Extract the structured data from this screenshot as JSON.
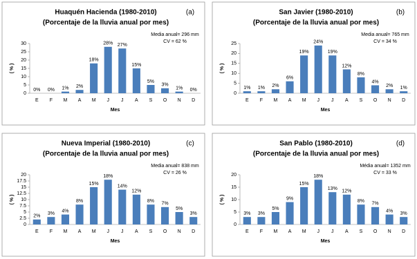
{
  "chart_data": [
    {
      "type": "bar",
      "title": "Huaquén Hacienda (1980-2010)",
      "subtitle": "(Porcentaje de la lluvia anual por mes)",
      "panel_label": "(a)",
      "annotations": [
        "Media anual= 296 mm",
        "CV = 62 %"
      ],
      "x_label": "Mes",
      "y_label": "( % )",
      "categories": [
        "E",
        "F",
        "M",
        "A",
        "M",
        "J",
        "J",
        "A",
        "S",
        "O",
        "N",
        "D"
      ],
      "values": [
        0,
        0,
        1,
        2,
        18,
        28,
        27,
        15,
        5,
        3,
        1,
        0
      ],
      "value_labels": [
        "0%",
        "0%",
        "1%",
        "2%",
        "18%",
        "28%",
        "27%",
        "15%",
        "5%",
        "3%",
        "1%",
        "0%"
      ],
      "color": "#4a7ebb",
      "ylim": [
        0,
        30
      ],
      "yticks": [
        0,
        5,
        10,
        15,
        20,
        25,
        30
      ]
    },
    {
      "type": "bar",
      "title": "San Javier (1980-2010)",
      "subtitle": "(Porcentaje de la lluvia anual por mes)",
      "panel_label": "(b)",
      "annotations": [
        "Media anual= 765 mm",
        "CV = 34 %"
      ],
      "x_label": "Mes",
      "y_label": "( % )",
      "categories": [
        "E",
        "F",
        "M",
        "A",
        "M",
        "J",
        "J",
        "A",
        "S",
        "O",
        "N",
        "D"
      ],
      "values": [
        1,
        1,
        2,
        6,
        19,
        24,
        19,
        12,
        8,
        4,
        2,
        1
      ],
      "value_labels": [
        "1%",
        "1%",
        "2%",
        "6%",
        "19%",
        "24%",
        "19%",
        "12%",
        "8%",
        "4%",
        "2%",
        "1%"
      ],
      "color": "#4a7ebb",
      "ylim": [
        0,
        25
      ],
      "yticks": [
        0,
        5,
        10,
        15,
        20,
        25
      ]
    },
    {
      "type": "bar",
      "title": "Nueva Imperial (1980-2010)",
      "subtitle": "(Porcentaje de la lluvia anual por mes)",
      "panel_label": "(c)",
      "annotations": [
        "Media anual= 838 mm",
        "CV = 26 %"
      ],
      "x_label": "Mes",
      "y_label": "( % )",
      "categories": [
        "E",
        "F",
        "M",
        "A",
        "M",
        "J",
        "J",
        "A",
        "S",
        "O",
        "N",
        "D"
      ],
      "values": [
        2,
        3,
        4,
        8,
        15,
        18,
        14,
        12,
        8,
        7,
        5,
        3
      ],
      "value_labels": [
        "2%",
        "3%",
        "4%",
        "8%",
        "15%",
        "18%",
        "14%",
        "12%",
        "8%",
        "7%",
        "5%",
        "3%"
      ],
      "color": "#4a7ebb",
      "ylim": [
        0,
        20
      ],
      "yticks": [
        0,
        2.5,
        5,
        7.5,
        10,
        12.5,
        15,
        17.5,
        20
      ]
    },
    {
      "type": "bar",
      "title": "San Pablo (1980-2010)",
      "subtitle": "(Porcentaje de la lluvia anual por mes)",
      "panel_label": "(d)",
      "annotations": [
        "Média anual= 1352 mm",
        "CV = 33 %"
      ],
      "x_label": "Mes",
      "y_label": "( % )",
      "categories": [
        "E",
        "F",
        "M",
        "A",
        "M",
        "J",
        "J",
        "A",
        "S",
        "O",
        "N",
        "D"
      ],
      "values": [
        3,
        3,
        5,
        9,
        15,
        18,
        13,
        12,
        8,
        7,
        4,
        3
      ],
      "value_labels": [
        "3%",
        "3%",
        "5%",
        "9%",
        "15%",
        "18%",
        "13%",
        "12%",
        "8%",
        "7%",
        "4%",
        "3%"
      ],
      "color": "#4a7ebb",
      "ylim": [
        0,
        20
      ],
      "yticks": [
        0,
        5,
        10,
        15,
        20
      ]
    }
  ]
}
